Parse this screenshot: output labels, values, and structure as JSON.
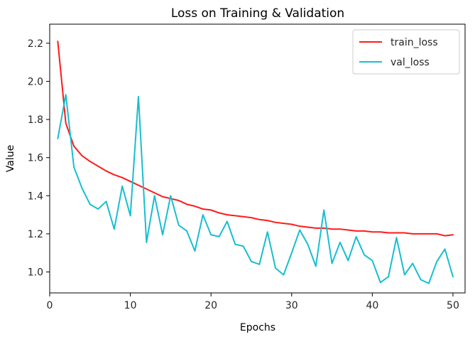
{
  "chart_data": {
    "type": "line",
    "title": "Loss on Training & Validation",
    "xlabel": "Epochs",
    "ylabel": "Value",
    "xlim": [
      0,
      51.5
    ],
    "ylim": [
      0.89,
      2.3
    ],
    "xticks": [
      0,
      10,
      20,
      30,
      40,
      50
    ],
    "yticks": [
      1.0,
      1.2,
      1.4,
      1.6,
      1.8,
      2.0,
      2.2
    ],
    "xtick_labels": [
      "0",
      "10",
      "20",
      "30",
      "40",
      "50"
    ],
    "ytick_labels": [
      "1.0",
      "1.2",
      "1.4",
      "1.6",
      "1.8",
      "2.0",
      "2.2"
    ],
    "legend_position": "top-right",
    "x": [
      1,
      2,
      3,
      4,
      5,
      6,
      7,
      8,
      9,
      10,
      11,
      12,
      13,
      14,
      15,
      16,
      17,
      18,
      19,
      20,
      21,
      22,
      23,
      24,
      25,
      26,
      27,
      28,
      29,
      30,
      31,
      32,
      33,
      34,
      35,
      36,
      37,
      38,
      39,
      40,
      41,
      42,
      43,
      44,
      45,
      46,
      47,
      48,
      49,
      50
    ],
    "series": [
      {
        "name": "train_loss",
        "color": "#ff1a1a",
        "values": [
          2.21,
          1.78,
          1.66,
          1.61,
          1.58,
          1.555,
          1.53,
          1.51,
          1.495,
          1.475,
          1.455,
          1.435,
          1.415,
          1.395,
          1.385,
          1.375,
          1.355,
          1.345,
          1.33,
          1.325,
          1.31,
          1.3,
          1.295,
          1.29,
          1.285,
          1.275,
          1.27,
          1.26,
          1.255,
          1.25,
          1.24,
          1.235,
          1.23,
          1.23,
          1.225,
          1.225,
          1.22,
          1.215,
          1.215,
          1.21,
          1.21,
          1.205,
          1.205,
          1.205,
          1.2,
          1.2,
          1.2,
          1.2,
          1.19,
          1.195
        ]
      },
      {
        "name": "val_loss",
        "color": "#17becf",
        "values": [
          1.7,
          1.93,
          1.55,
          1.44,
          1.355,
          1.33,
          1.37,
          1.225,
          1.45,
          1.295,
          1.92,
          1.155,
          1.4,
          1.195,
          1.4,
          1.245,
          1.215,
          1.11,
          1.3,
          1.195,
          1.185,
          1.265,
          1.145,
          1.135,
          1.055,
          1.04,
          1.21,
          1.02,
          0.985,
          1.1,
          1.22,
          1.145,
          1.03,
          1.325,
          1.045,
          1.155,
          1.06,
          1.185,
          1.09,
          1.06,
          0.945,
          0.975,
          1.18,
          0.985,
          1.045,
          0.96,
          0.94,
          1.055,
          1.12,
          0.975
        ]
      }
    ]
  }
}
